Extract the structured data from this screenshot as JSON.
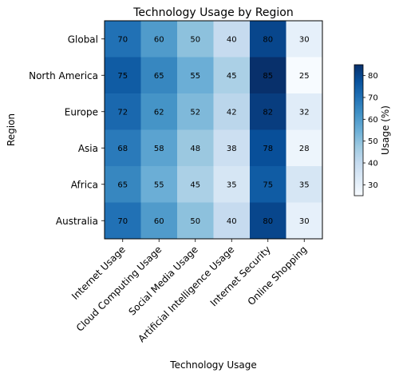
{
  "chart_data": {
    "type": "heatmap",
    "title": "Technology Usage by Region",
    "xlabel": "Technology Usage",
    "ylabel": "Region",
    "x_categories": [
      "Internet Usage",
      "Cloud Computing Usage",
      "Social Media Usage",
      "Artificial Intelligence Usage",
      "Internet Security",
      "Online Shopping"
    ],
    "y_categories": [
      "Global",
      "North America",
      "Europe",
      "Asia",
      "Africa",
      "Australia"
    ],
    "values": [
      [
        70,
        60,
        50,
        40,
        80,
        30
      ],
      [
        75,
        65,
        55,
        45,
        85,
        25
      ],
      [
        72,
        62,
        52,
        42,
        82,
        32
      ],
      [
        68,
        58,
        48,
        38,
        78,
        28
      ],
      [
        65,
        55,
        45,
        35,
        75,
        35
      ],
      [
        70,
        60,
        50,
        40,
        80,
        30
      ]
    ],
    "colorbar": {
      "label": "Usage (%)",
      "ticks": [
        30,
        40,
        50,
        60,
        70,
        80
      ],
      "range": [
        25,
        85
      ],
      "colormap": "Blues"
    },
    "grid": false
  }
}
